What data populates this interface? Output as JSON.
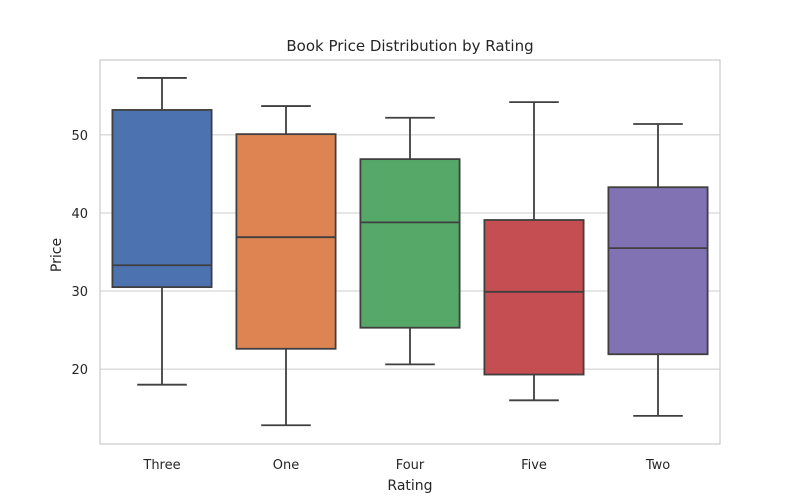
{
  "chart_data": {
    "type": "box",
    "title": "Book Price Distribution by Rating",
    "xlabel": "Rating",
    "ylabel": "Price",
    "categories": [
      "Three",
      "One",
      "Four",
      "Five",
      "Two"
    ],
    "ylim": [
      10.4,
      59.6
    ],
    "yticks": [
      20,
      30,
      40,
      50
    ],
    "grid": true,
    "boxes": [
      {
        "name": "Three",
        "whisker_low": 18.0,
        "q1": 30.5,
        "median": 33.3,
        "q3": 53.2,
        "whisker_high": 57.3,
        "color": "#4c72b0"
      },
      {
        "name": "One",
        "whisker_low": 12.8,
        "q1": 22.6,
        "median": 36.9,
        "q3": 50.1,
        "whisker_high": 53.7,
        "color": "#dd8452"
      },
      {
        "name": "Four",
        "whisker_low": 20.6,
        "q1": 25.3,
        "median": 38.8,
        "q3": 46.9,
        "whisker_high": 52.2,
        "color": "#55a868"
      },
      {
        "name": "Five",
        "whisker_low": 16.0,
        "q1": 19.3,
        "median": 29.9,
        "q3": 39.1,
        "whisker_high": 54.2,
        "color": "#c44e52"
      },
      {
        "name": "Two",
        "whisker_low": 14.0,
        "q1": 21.9,
        "median": 35.5,
        "q3": 43.3,
        "whisker_high": 51.4,
        "color": "#8172b3"
      }
    ]
  }
}
